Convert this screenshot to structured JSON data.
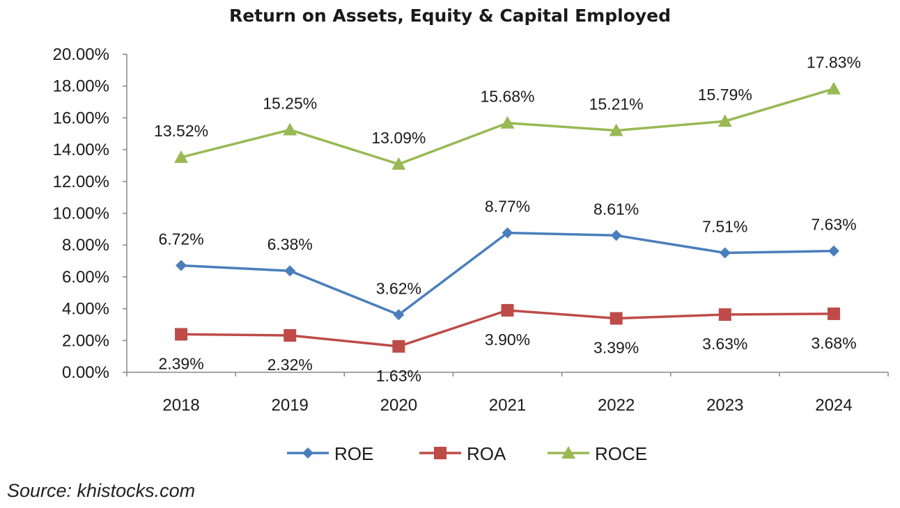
{
  "chart_data": {
    "type": "line",
    "title": "Return on Assets, Equity & Capital Employed",
    "categories": [
      "2018",
      "2019",
      "2020",
      "2021",
      "2022",
      "2023",
      "2024"
    ],
    "y_ticks": [
      "0.00%",
      "2.00%",
      "4.00%",
      "6.00%",
      "8.00%",
      "10.00%",
      "12.00%",
      "14.00%",
      "16.00%",
      "18.00%",
      "20.00%"
    ],
    "ylim": [
      0,
      20
    ],
    "grid": false,
    "legend_position": "bottom",
    "series": [
      {
        "name": "ROE",
        "color": "#4a7ebb",
        "marker": "diamond",
        "values": [
          6.72,
          6.38,
          3.62,
          8.77,
          8.61,
          7.51,
          7.63
        ],
        "labels": [
          "6.72%",
          "6.38%",
          "3.62%",
          "8.77%",
          "8.61%",
          "7.51%",
          "7.63%"
        ],
        "label_position": "above"
      },
      {
        "name": "ROA",
        "color": "#be4b48",
        "marker": "square",
        "values": [
          2.39,
          2.32,
          1.63,
          3.9,
          3.39,
          3.63,
          3.68
        ],
        "labels": [
          "2.39%",
          "2.32%",
          "1.63%",
          "3.90%",
          "3.39%",
          "3.63%",
          "3.68%"
        ],
        "label_position": "below"
      },
      {
        "name": "ROCE",
        "color": "#98b954",
        "marker": "triangle",
        "values": [
          13.52,
          15.25,
          13.09,
          15.68,
          15.21,
          15.79,
          17.83
        ],
        "labels": [
          "13.52%",
          "15.25%",
          "13.09%",
          "15.68%",
          "15.21%",
          "15.79%",
          "17.83%"
        ],
        "label_position": "above"
      }
    ]
  },
  "source": "Source: khistocks.com"
}
